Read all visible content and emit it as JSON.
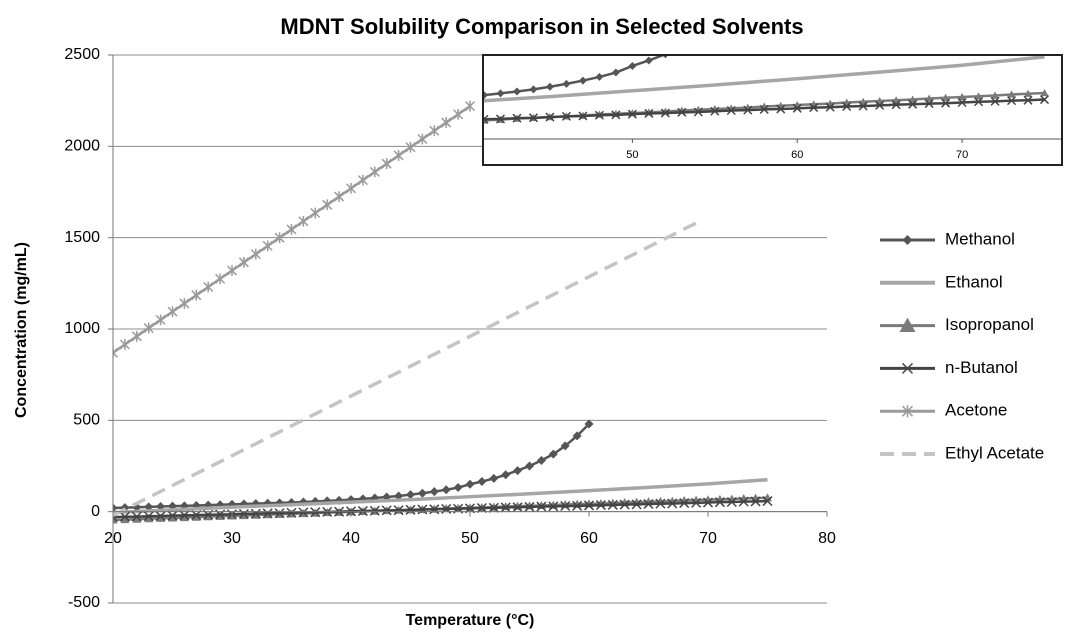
{
  "chart_data": {
    "type": "line",
    "title": "MDNT Solubility Comparison in Selected Solvents",
    "xlabel": "Temperature (°C)",
    "ylabel": "Concentration (mg/mL)",
    "xlim": [
      20,
      80
    ],
    "xticks": [
      20,
      30,
      40,
      50,
      60,
      70,
      80
    ],
    "ylim": [
      -500,
      2500
    ],
    "yticks": [
      -500,
      0,
      500,
      1000,
      1500,
      2000,
      2500
    ],
    "grid": true,
    "legend": "right",
    "series": [
      {
        "name": "Methanol",
        "color": "#555555",
        "marker": "diamond",
        "dashed": false,
        "x": [
          20,
          21,
          22,
          23,
          24,
          25,
          26,
          27,
          28,
          29,
          30,
          31,
          32,
          33,
          34,
          35,
          36,
          37,
          38,
          39,
          40,
          41,
          42,
          43,
          44,
          45,
          46,
          47,
          48,
          49,
          50,
          51,
          52,
          53,
          54,
          55,
          56,
          57,
          58,
          59,
          60
        ],
        "values": [
          20,
          22,
          24,
          26,
          28,
          30,
          32,
          34,
          36,
          38,
          40,
          42,
          44,
          46,
          48,
          50,
          53,
          56,
          59,
          62,
          66,
          70,
          75,
          80,
          86,
          93,
          101,
          110,
          120,
          132,
          150,
          165,
          182,
          202,
          225,
          250,
          280,
          315,
          360,
          415,
          480
        ]
      },
      {
        "name": "Ethanol",
        "color": "#a6a6a6",
        "marker": "none",
        "dashed": false,
        "x": [
          20,
          25,
          30,
          35,
          40,
          45,
          50,
          55,
          60,
          65,
          70,
          75
        ],
        "values": [
          -5,
          10,
          25,
          38,
          52,
          66,
          82,
          98,
          115,
          133,
          152,
          175
        ]
      },
      {
        "name": "Isopropanol",
        "color": "#7a7a7a",
        "marker": "triangle",
        "dashed": false,
        "x": [
          20,
          21,
          22,
          23,
          24,
          25,
          26,
          27,
          28,
          29,
          30,
          31,
          32,
          33,
          34,
          35,
          36,
          37,
          38,
          39,
          40,
          41,
          42,
          43,
          44,
          45,
          46,
          47,
          48,
          49,
          50,
          51,
          52,
          53,
          54,
          55,
          56,
          57,
          58,
          59,
          60,
          61,
          62,
          63,
          64,
          65,
          66,
          67,
          68,
          69,
          70,
          71,
          72,
          73,
          74,
          75
        ],
        "values": [
          -45,
          -43,
          -41,
          -38,
          -36,
          -34,
          -32,
          -30,
          -27,
          -25,
          -23,
          -21,
          -19,
          -16,
          -14,
          -12,
          -10,
          -8,
          -5,
          -3,
          -1,
          1,
          3,
          6,
          8,
          10,
          12,
          14,
          17,
          19,
          21,
          23,
          25,
          28,
          30,
          32,
          34,
          36,
          39,
          41,
          43,
          45,
          47,
          50,
          52,
          54,
          56,
          58,
          61,
          63,
          65,
          67,
          69,
          72,
          74,
          76
        ]
      },
      {
        "name": "n-Butanol",
        "color": "#444444",
        "marker": "x",
        "dashed": false,
        "x": [
          20,
          21,
          22,
          23,
          24,
          25,
          26,
          27,
          28,
          29,
          30,
          31,
          32,
          33,
          34,
          35,
          36,
          37,
          38,
          39,
          40,
          41,
          42,
          43,
          44,
          45,
          46,
          47,
          48,
          49,
          50,
          51,
          52,
          53,
          54,
          55,
          56,
          57,
          58,
          59,
          60,
          61,
          62,
          63,
          64,
          65,
          66,
          67,
          68,
          69,
          70,
          71,
          72,
          73,
          74,
          75
        ],
        "values": [
          -30,
          -28,
          -27,
          -25,
          -24,
          -22,
          -20,
          -19,
          -17,
          -16,
          -14,
          -12,
          -11,
          -9,
          -8,
          -6,
          -4,
          -3,
          -1,
          0,
          2,
          4,
          5,
          7,
          8,
          10,
          12,
          13,
          15,
          16,
          18,
          20,
          21,
          23,
          24,
          26,
          28,
          29,
          31,
          32,
          34,
          36,
          37,
          39,
          40,
          42,
          44,
          45,
          47,
          48,
          50,
          52,
          53,
          55,
          56,
          58
        ]
      },
      {
        "name": "Acetone",
        "color": "#9a9a9a",
        "marker": "star",
        "dashed": false,
        "x": [
          20,
          21,
          22,
          23,
          24,
          25,
          26,
          27,
          28,
          29,
          30,
          31,
          32,
          33,
          34,
          35,
          36,
          37,
          38,
          39,
          40,
          41,
          42,
          43,
          44,
          45,
          46,
          47,
          48,
          49,
          50
        ],
        "values": [
          870,
          915,
          960,
          1005,
          1050,
          1095,
          1140,
          1185,
          1230,
          1275,
          1320,
          1365,
          1410,
          1455,
          1500,
          1545,
          1590,
          1635,
          1680,
          1725,
          1770,
          1815,
          1860,
          1905,
          1950,
          1995,
          2040,
          2085,
          2130,
          2175,
          2220
        ]
      },
      {
        "name": "Ethyl Acetate",
        "color": "#c4c4c4",
        "marker": "none",
        "dashed": true,
        "x": [
          20,
          69
        ],
        "values": [
          -20,
          1580
        ]
      }
    ],
    "inset": {
      "xlim": [
        41,
        76
      ],
      "ylim": [
        -50,
        180
      ],
      "xticks": [
        50,
        60,
        70
      ]
    }
  }
}
